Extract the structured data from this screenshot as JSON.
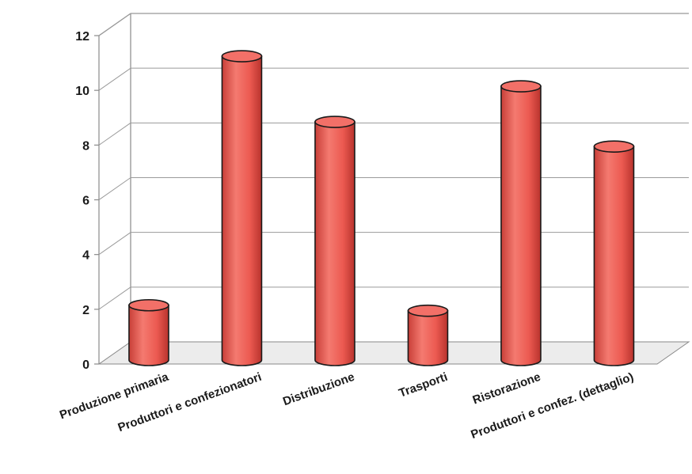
{
  "chart_data": {
    "type": "bar",
    "categories": [
      "Produzione primaria",
      "Produttori e confezionatori",
      "Distribuzione",
      "Trasporti",
      "Ristorazione",
      "Produttori e confez. (dettaglio)"
    ],
    "values": [
      1.8,
      10.9,
      8.5,
      1.6,
      9.8,
      7.6
    ],
    "yticks": [
      "0",
      "2",
      "4",
      "6",
      "8",
      "10",
      "12"
    ],
    "ylim": [
      0,
      12
    ],
    "grid": true,
    "legend": "none",
    "style": "3d-cylinder",
    "colors": {
      "bar": "#ee5a52",
      "bar_dark": "#c23b34",
      "bar_light": "#f98a80",
      "top": "#f27068"
    }
  }
}
